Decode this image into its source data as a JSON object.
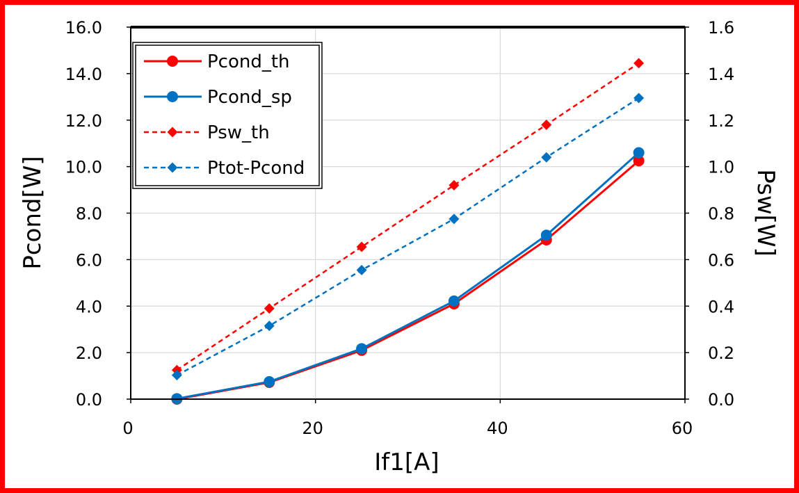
{
  "chart_data": {
    "type": "line",
    "xlabel": "If1[A]",
    "ylabel": "Pcond[W]",
    "y2label": "Psw[W]",
    "xlim": [
      0,
      60
    ],
    "ylim": [
      0,
      16
    ],
    "y2lim": [
      0,
      1.6
    ],
    "x_ticks": [
      "0",
      "20",
      "40",
      "60"
    ],
    "y_ticks": [
      "0.0",
      "2.0",
      "4.0",
      "6.0",
      "8.0",
      "10.0",
      "12.0",
      "14.0",
      "16.0"
    ],
    "y2_ticks": [
      "0.0",
      "0.2",
      "0.4",
      "0.6",
      "0.8",
      "1.0",
      "1.2",
      "1.4",
      "1.6"
    ],
    "grid": true,
    "legend_position": "top-left",
    "series": [
      {
        "name": "Pcond_th",
        "axis": "left",
        "color": "#ff0000",
        "dash": "solid",
        "marker": "circle",
        "x": [
          5,
          15,
          25,
          35,
          45,
          55
        ],
        "values": [
          0.0,
          0.72,
          2.1,
          4.1,
          6.85,
          10.25
        ]
      },
      {
        "name": "Pcond_sp",
        "axis": "left",
        "color": "#0070c0",
        "dash": "solid",
        "marker": "circle",
        "x": [
          5,
          15,
          25,
          35,
          45,
          55
        ],
        "values": [
          0.02,
          0.75,
          2.17,
          4.22,
          7.05,
          10.6
        ]
      },
      {
        "name": "Psw_th",
        "axis": "right",
        "color": "#ff0000",
        "dash": "dashed",
        "marker": "diamond",
        "x": [
          5,
          15,
          25,
          35,
          45,
          55
        ],
        "values": [
          0.125,
          0.39,
          0.655,
          0.92,
          1.18,
          1.445
        ]
      },
      {
        "name": "Ptot-Pcond",
        "axis": "right",
        "color": "#0070c0",
        "dash": "dashed",
        "marker": "diamond",
        "x": [
          5,
          15,
          25,
          35,
          45,
          55
        ],
        "values": [
          0.103,
          0.315,
          0.555,
          0.775,
          1.04,
          1.295
        ]
      }
    ]
  }
}
